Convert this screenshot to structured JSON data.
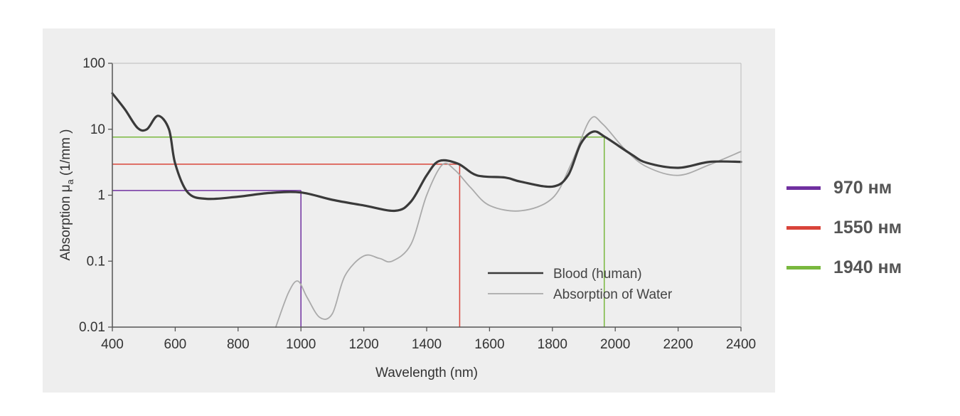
{
  "chart_data": {
    "type": "line",
    "xlabel": "Wavelength (nm)",
    "ylabel_prefix": "Absorption μ",
    "ylabel_sub": "a",
    "ylabel_suffix": " (1/mm )",
    "x_range": [
      400,
      2400
    ],
    "y_range": [
      0.01,
      100
    ],
    "y_scale": "log",
    "grid": false,
    "x_ticks": [
      "400",
      "600",
      "800",
      "1000",
      "1200",
      "1400",
      "1600",
      "1800",
      "2000",
      "2200",
      "2400"
    ],
    "y_ticks": [
      "0.01",
      "0.1",
      "1",
      "10",
      "100"
    ],
    "legend_position": "lower-right",
    "series": [
      {
        "name": "Blood (human)",
        "color": "#3a3a3a",
        "points": [
          [
            400,
            35
          ],
          [
            440,
            20
          ],
          [
            480,
            10.5
          ],
          [
            510,
            10
          ],
          [
            545,
            16
          ],
          [
            580,
            10
          ],
          [
            600,
            3
          ],
          [
            640,
            1.1
          ],
          [
            700,
            0.88
          ],
          [
            800,
            0.95
          ],
          [
            900,
            1.08
          ],
          [
            1000,
            1.1
          ],
          [
            1100,
            0.85
          ],
          [
            1200,
            0.7
          ],
          [
            1300,
            0.58
          ],
          [
            1350,
            0.8
          ],
          [
            1400,
            2.0
          ],
          [
            1440,
            3.3
          ],
          [
            1500,
            3.0
          ],
          [
            1560,
            2.0
          ],
          [
            1650,
            1.85
          ],
          [
            1700,
            1.6
          ],
          [
            1800,
            1.35
          ],
          [
            1850,
            2.0
          ],
          [
            1890,
            6.0
          ],
          [
            1930,
            9.2
          ],
          [
            1970,
            7.5
          ],
          [
            2050,
            4.2
          ],
          [
            2100,
            3.1
          ],
          [
            2200,
            2.6
          ],
          [
            2300,
            3.2
          ],
          [
            2400,
            3.2
          ]
        ]
      },
      {
        "name": "Absorption of Water",
        "color": "#aaaaaa",
        "points": [
          [
            920,
            0.01
          ],
          [
            960,
            0.033
          ],
          [
            990,
            0.05
          ],
          [
            1020,
            0.028
          ],
          [
            1060,
            0.014
          ],
          [
            1100,
            0.016
          ],
          [
            1140,
            0.06
          ],
          [
            1200,
            0.12
          ],
          [
            1250,
            0.11
          ],
          [
            1290,
            0.1
          ],
          [
            1350,
            0.18
          ],
          [
            1400,
            1.0
          ],
          [
            1450,
            2.9
          ],
          [
            1490,
            2.4
          ],
          [
            1540,
            1.3
          ],
          [
            1600,
            0.7
          ],
          [
            1700,
            0.58
          ],
          [
            1800,
            0.9
          ],
          [
            1860,
            3.0
          ],
          [
            1920,
            14
          ],
          [
            1960,
            12
          ],
          [
            2030,
            5.0
          ],
          [
            2100,
            2.7
          ],
          [
            2200,
            2.0
          ],
          [
            2300,
            2.9
          ],
          [
            2400,
            4.6
          ]
        ]
      }
    ],
    "markers": [
      {
        "label": "970 нм",
        "color": "#7030a0",
        "x": 1000,
        "y": 1.18
      },
      {
        "label": "1550 нм",
        "color": "#d9443a",
        "x": 1505,
        "y": 2.95
      },
      {
        "label": "1940 нм",
        "color": "#79b83e",
        "x": 1965,
        "y": 7.6
      }
    ]
  }
}
